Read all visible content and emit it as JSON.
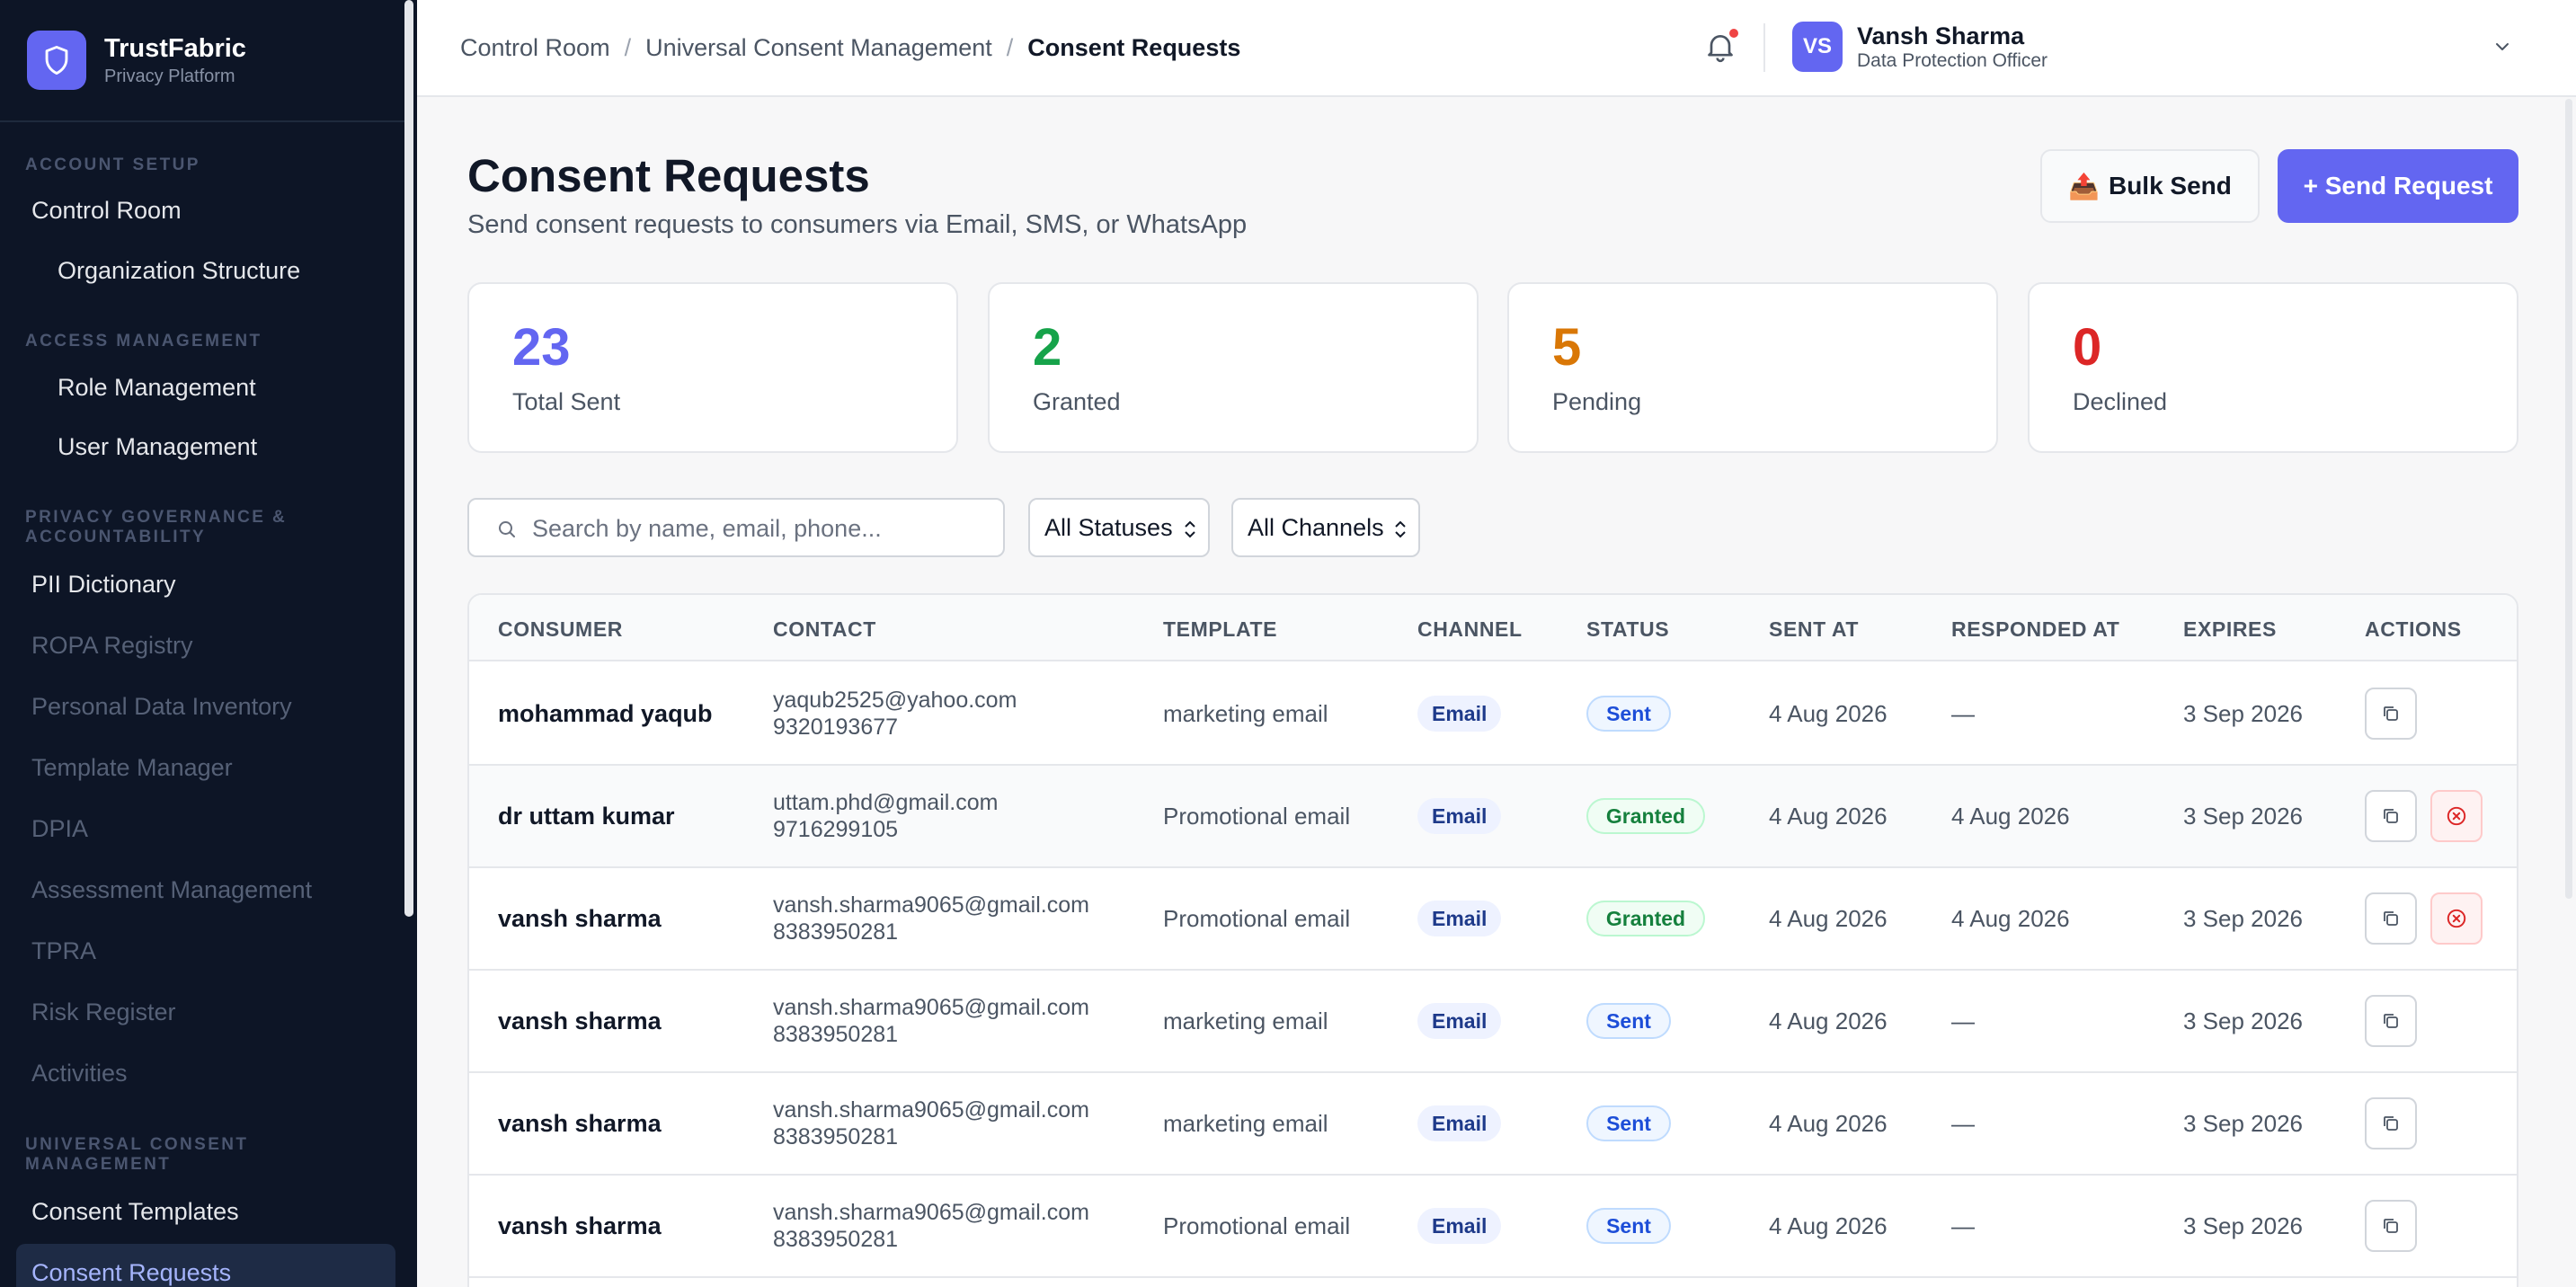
{
  "brand": {
    "name": "TrustFabric",
    "subtitle": "Privacy Platform"
  },
  "sidebar": {
    "sections": [
      {
        "title": "ACCOUNT SETUP"
      },
      {
        "title": "ACCESS MANAGEMENT"
      },
      {
        "title": "PRIVACY GOVERNANCE & ACCOUNTABILITY"
      },
      {
        "title": "UNIVERSAL CONSENT MANAGEMENT"
      }
    ],
    "items": [
      {
        "label": "Control Room"
      },
      {
        "label": "Organization Structure"
      },
      {
        "label": "Role Management"
      },
      {
        "label": "User Management"
      },
      {
        "label": "PII Dictionary"
      },
      {
        "label": "ROPA Registry"
      },
      {
        "label": "Personal Data Inventory"
      },
      {
        "label": "Template Manager"
      },
      {
        "label": "DPIA"
      },
      {
        "label": "Assessment Management"
      },
      {
        "label": "TPRA"
      },
      {
        "label": "Risk Register"
      },
      {
        "label": "Activities"
      },
      {
        "label": "Consent Templates"
      },
      {
        "label": "Consent Requests"
      }
    ]
  },
  "header": {
    "breadcrumb": [
      "Control Room",
      "Universal Consent Management",
      "Consent Requests"
    ],
    "separator": "/",
    "user": {
      "initials": "VS",
      "name": "Vansh Sharma",
      "role": "Data Protection Officer"
    }
  },
  "page": {
    "title": "Consent Requests",
    "subtitle": "Send consent requests to consumers via Email, SMS, or WhatsApp",
    "bulk_send_label": "Bulk Send",
    "bulk_send_icon": "📤",
    "send_request_label": "+ Send Request"
  },
  "stats": [
    {
      "value": "23",
      "label": "Total Sent",
      "color": "#6366f1"
    },
    {
      "value": "2",
      "label": "Granted",
      "color": "#16a34a"
    },
    {
      "value": "5",
      "label": "Pending",
      "color": "#d97706"
    },
    {
      "value": "0",
      "label": "Declined",
      "color": "#dc2626"
    }
  ],
  "filters": {
    "search_placeholder": "Search by name, email, phone...",
    "status_selected": "All Statuses",
    "channel_selected": "All Channels"
  },
  "table": {
    "headers": [
      "CONSUMER",
      "CONTACT",
      "TEMPLATE",
      "CHANNEL",
      "STATUS",
      "SENT AT",
      "RESPONDED AT",
      "EXPIRES",
      "ACTIONS"
    ],
    "rows": [
      {
        "consumer": "mohammad yaqub",
        "email": "yaqub2525@yahoo.com",
        "phone": "9320193677",
        "template": "marketing email",
        "channel": "Email",
        "status": "Sent",
        "sent_at": "4 Aug 2026",
        "responded_at": "—",
        "expires": "3 Sep 2026"
      },
      {
        "consumer": "dr uttam kumar",
        "email": "uttam.phd@gmail.com",
        "phone": "9716299105",
        "template": "Promotional email",
        "channel": "Email",
        "status": "Granted",
        "sent_at": "4 Aug 2026",
        "responded_at": "4 Aug 2026",
        "expires": "3 Sep 2026"
      },
      {
        "consumer": "vansh sharma",
        "email": "vansh.sharma9065@gmail.com",
        "phone": "8383950281",
        "template": "Promotional email",
        "channel": "Email",
        "status": "Granted",
        "sent_at": "4 Aug 2026",
        "responded_at": "4 Aug 2026",
        "expires": "3 Sep 2026"
      },
      {
        "consumer": "vansh sharma",
        "email": "vansh.sharma9065@gmail.com",
        "phone": "8383950281",
        "template": "marketing email",
        "channel": "Email",
        "status": "Sent",
        "sent_at": "4 Aug 2026",
        "responded_at": "—",
        "expires": "3 Sep 2026"
      },
      {
        "consumer": "vansh sharma",
        "email": "vansh.sharma9065@gmail.com",
        "phone": "8383950281",
        "template": "marketing email",
        "channel": "Email",
        "status": "Sent",
        "sent_at": "4 Aug 2026",
        "responded_at": "—",
        "expires": "3 Sep 2026"
      },
      {
        "consumer": "vansh sharma",
        "email": "vansh.sharma9065@gmail.com",
        "phone": "8383950281",
        "template": "Promotional email",
        "channel": "Email",
        "status": "Sent",
        "sent_at": "4 Aug 2026",
        "responded_at": "—",
        "expires": "3 Sep 2026"
      }
    ]
  }
}
